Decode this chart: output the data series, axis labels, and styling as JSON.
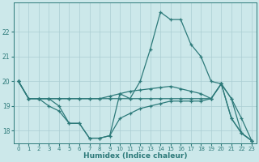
{
  "xlabel": "Humidex (Indice chaleur)",
  "xlim": [
    -0.5,
    23.5
  ],
  "ylim": [
    17.5,
    23.2
  ],
  "yticks": [
    18,
    19,
    20,
    21,
    22
  ],
  "xticks": [
    0,
    1,
    2,
    3,
    4,
    5,
    6,
    7,
    8,
    9,
    10,
    11,
    12,
    13,
    14,
    15,
    16,
    17,
    18,
    19,
    20,
    21,
    22,
    23
  ],
  "bg_color": "#cce8ea",
  "grid_color": "#aacdd2",
  "line_color": "#2d7a7a",
  "lines": [
    {
      "x": [
        0,
        1,
        2,
        3,
        4,
        5,
        6,
        7,
        8,
        9,
        10,
        11,
        12,
        13,
        14,
        15,
        16,
        17,
        18,
        19,
        20,
        21,
        22,
        23
      ],
      "y": [
        20.0,
        19.3,
        19.3,
        19.3,
        19.0,
        18.3,
        18.3,
        17.7,
        17.7,
        17.8,
        19.5,
        19.3,
        20.0,
        21.3,
        22.8,
        22.5,
        22.5,
        21.5,
        21.0,
        20.0,
        19.9,
        18.5,
        17.9,
        17.6
      ]
    },
    {
      "x": [
        0,
        1,
        2,
        3,
        4,
        5,
        6,
        7,
        8,
        9,
        10,
        11,
        12,
        13,
        14,
        15,
        16,
        17,
        18,
        19,
        20,
        21,
        22,
        23
      ],
      "y": [
        20.0,
        19.3,
        19.3,
        19.3,
        19.3,
        19.3,
        19.3,
        19.3,
        19.3,
        19.3,
        19.3,
        19.3,
        19.3,
        19.3,
        19.3,
        19.3,
        19.3,
        19.3,
        19.3,
        19.3,
        19.9,
        19.3,
        17.9,
        17.6
      ]
    },
    {
      "x": [
        0,
        1,
        2,
        3,
        4,
        5,
        6,
        7,
        8,
        9,
        10,
        11,
        12,
        13,
        14,
        15,
        16,
        17,
        18,
        19,
        20,
        21,
        22,
        23
      ],
      "y": [
        20.0,
        19.3,
        19.3,
        19.3,
        19.3,
        19.3,
        19.3,
        19.3,
        19.3,
        19.4,
        19.5,
        19.6,
        19.65,
        19.7,
        19.75,
        19.8,
        19.7,
        19.6,
        19.5,
        19.3,
        19.9,
        19.3,
        18.5,
        17.6
      ]
    },
    {
      "x": [
        0,
        1,
        2,
        3,
        4,
        5,
        6,
        7,
        8,
        9,
        10,
        11,
        12,
        13,
        14,
        15,
        16,
        17,
        18,
        19,
        20,
        21,
        22,
        23
      ],
      "y": [
        20.0,
        19.3,
        19.3,
        19.0,
        18.8,
        18.3,
        18.3,
        17.7,
        17.7,
        17.8,
        18.5,
        18.7,
        18.9,
        19.0,
        19.1,
        19.2,
        19.2,
        19.2,
        19.2,
        19.3,
        19.9,
        18.5,
        17.9,
        17.6
      ]
    }
  ]
}
